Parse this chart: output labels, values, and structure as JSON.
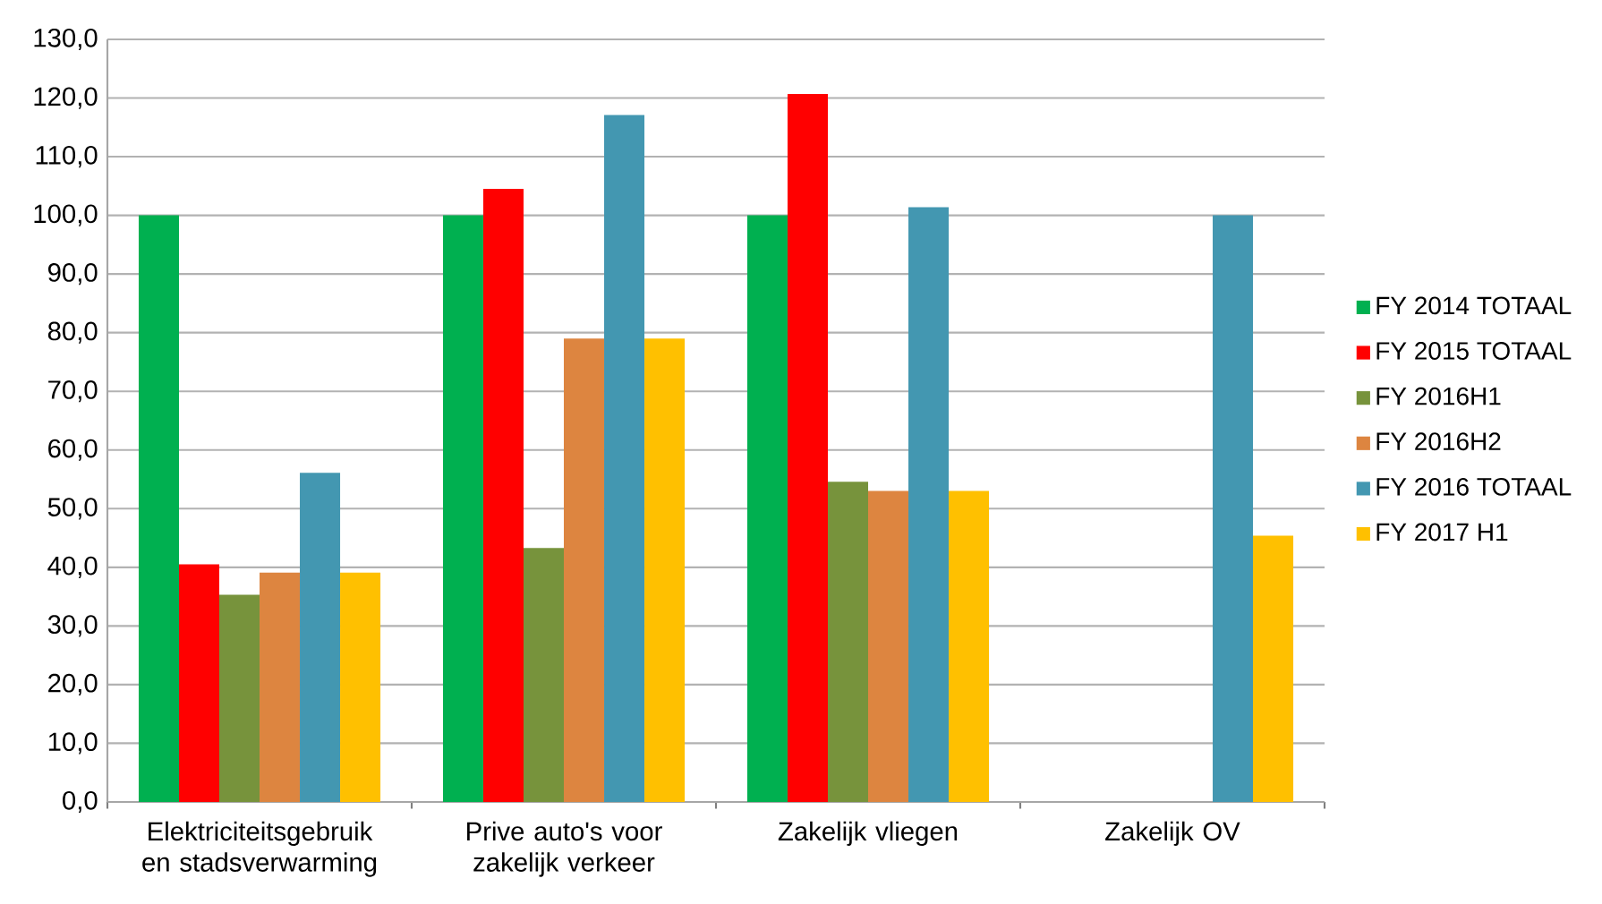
{
  "chart_data": {
    "type": "bar",
    "categories": [
      "Elektriciteitsgebruik en stadsverwarming",
      "Prive auto's voor zakelijk verkeer",
      "Zakelijk vliegen",
      "Zakelijk OV"
    ],
    "series": [
      {
        "name": "FY 2014 TOTAAL",
        "color": "#00b050",
        "values": [
          100,
          100,
          100,
          null
        ]
      },
      {
        "name": "FY 2015 TOTAAL",
        "color": "#ff0000",
        "values": [
          40.5,
          104.5,
          120.7,
          null
        ]
      },
      {
        "name": "FY 2016H1",
        "color": "#77933c",
        "values": [
          35.3,
          43.3,
          54.6,
          null
        ]
      },
      {
        "name": "FY 2016H2",
        "color": "#dd8540",
        "values": [
          39.1,
          79.0,
          53.0,
          null
        ]
      },
      {
        "name": "FY 2016 TOTAAL",
        "color": "#4397b1",
        "values": [
          56.1,
          117.1,
          101.4,
          100
        ]
      },
      {
        "name": "FY 2017 H1",
        "color": "#ffc000",
        "values": [
          39.1,
          79.0,
          53.0,
          45.4
        ]
      }
    ],
    "ylim": [
      0,
      130
    ],
    "yticks": [
      {
        "value": 0,
        "label": "0,0"
      },
      {
        "value": 10,
        "label": "10,0"
      },
      {
        "value": 20,
        "label": "20,0"
      },
      {
        "value": 30,
        "label": "30,0"
      },
      {
        "value": 40,
        "label": "40,0"
      },
      {
        "value": 50,
        "label": "50,0"
      },
      {
        "value": 60,
        "label": "60,0"
      },
      {
        "value": 70,
        "label": "70,0"
      },
      {
        "value": 80,
        "label": "80,0"
      },
      {
        "value": 90,
        "label": "90,0"
      },
      {
        "value": 100,
        "label": "100,0"
      },
      {
        "value": 110,
        "label": "110,0"
      },
      {
        "value": 120,
        "label": "120,0"
      },
      {
        "value": 130,
        "label": "130,0"
      }
    ],
    "grid": "y",
    "legend": "right"
  }
}
